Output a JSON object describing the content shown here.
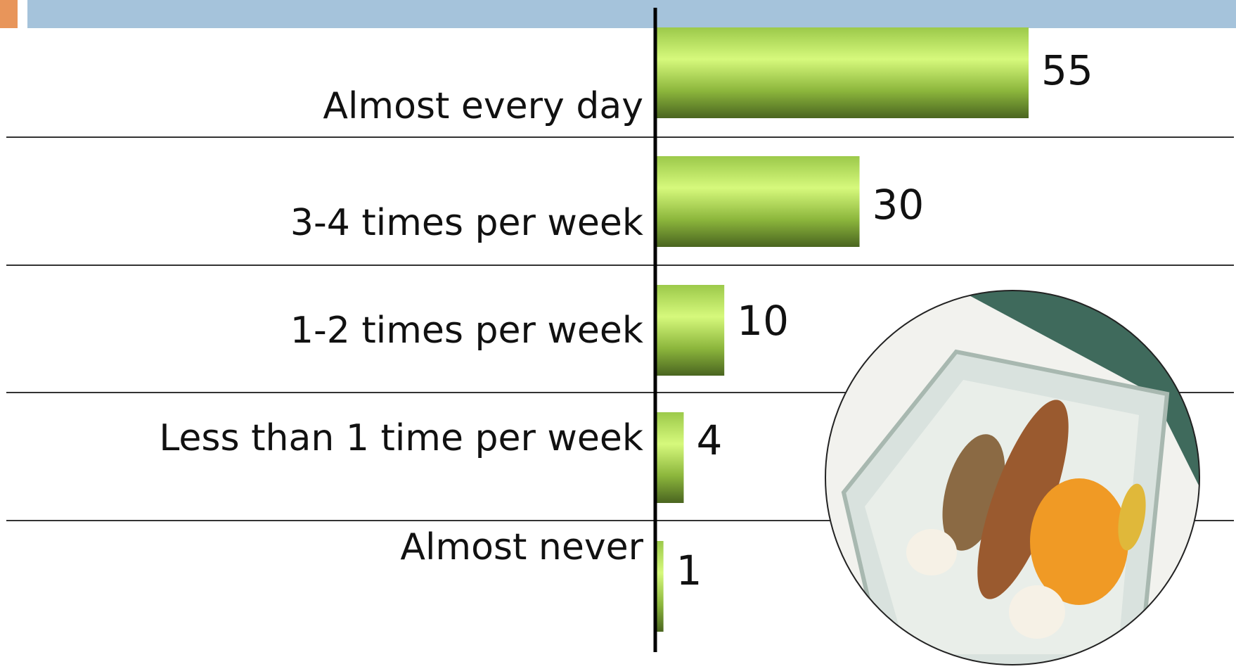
{
  "chart_data": {
    "type": "bar",
    "orientation": "horizontal",
    "categories": [
      "Almost every day",
      "3-4 times per week",
      "1-2 times per week",
      "Less than 1 time per week",
      "Almost never"
    ],
    "values": [
      55,
      30,
      10,
      4,
      1
    ],
    "color": "#8fc43a"
  }
}
